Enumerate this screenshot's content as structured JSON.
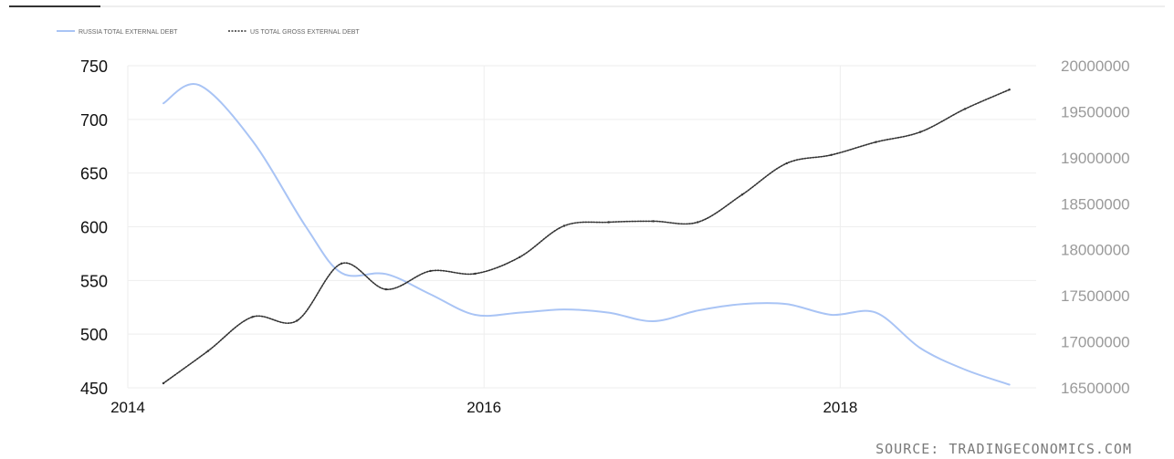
{
  "chart_data": {
    "type": "line",
    "source": "SOURCE: TRADINGECONOMICS.COM",
    "x_ticks": [
      "2014",
      "2016",
      "2018"
    ],
    "xlim": [
      2014.0,
      2019.1
    ],
    "y_left": {
      "ticks": [
        "750",
        "700",
        "650",
        "600",
        "550",
        "500",
        "450"
      ],
      "ylim": [
        450,
        750
      ]
    },
    "y_right": {
      "ticks": [
        "20000000",
        "19500000",
        "19000000",
        "18500000",
        "18000000",
        "17500000",
        "17000000",
        "16500000"
      ],
      "ylim": [
        16500000,
        20000000
      ]
    },
    "grid": true,
    "legend_position": "top-left",
    "colors": {
      "russia": "#a9c4f5",
      "us": "#333333",
      "tick_left": "#111111",
      "tick_right": "#9a9a9a",
      "grid": "#eeeeee"
    },
    "series": [
      {
        "name": "RUSSIA TOTAL EXTERNAL DEBT",
        "axis": "left",
        "style": "solid",
        "x": [
          2014.2,
          2014.4,
          2014.7,
          2015.0,
          2015.2,
          2015.45,
          2015.7,
          2015.95,
          2016.2,
          2016.45,
          2016.7,
          2016.95,
          2017.2,
          2017.45,
          2017.7,
          2017.95,
          2018.2,
          2018.45,
          2018.7,
          2018.95
        ],
        "values": [
          715,
          732,
          680,
          600,
          557,
          556,
          537,
          518,
          520,
          523,
          520,
          512,
          522,
          528,
          528,
          518,
          520,
          487,
          467,
          453
        ]
      },
      {
        "name": "US TOTAL GROSS EXTERNAL DEBT",
        "axis": "right",
        "style": "dotted",
        "x": [
          2014.2,
          2014.45,
          2014.7,
          2014.95,
          2015.2,
          2015.45,
          2015.7,
          2015.95,
          2016.2,
          2016.45,
          2016.7,
          2016.95,
          2017.2,
          2017.45,
          2017.7,
          2017.95,
          2018.2,
          2018.45,
          2018.7,
          2018.95
        ],
        "values": [
          16550000,
          16900000,
          17270000,
          17230000,
          17850000,
          17570000,
          17770000,
          17740000,
          17920000,
          18260000,
          18300000,
          18310000,
          18300000,
          18600000,
          18940000,
          19030000,
          19170000,
          19280000,
          19530000,
          19740000
        ]
      }
    ]
  }
}
